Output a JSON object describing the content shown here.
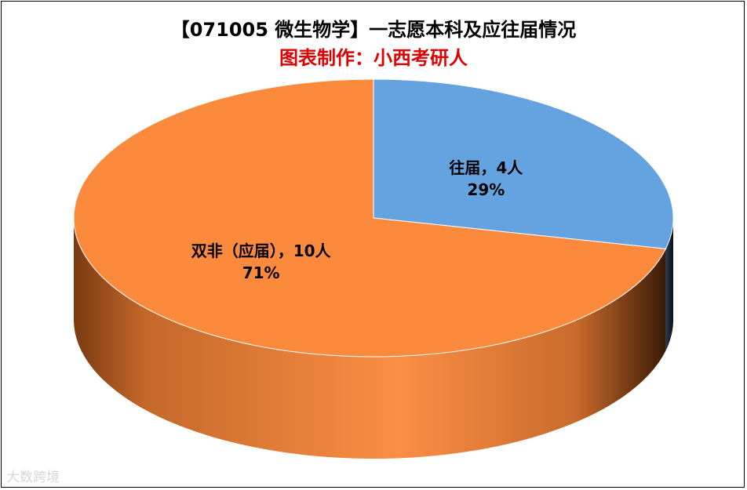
{
  "chart_data": {
    "type": "pie",
    "style": "3d",
    "title": "【071005 微生物学】一志愿本科及应往届情况",
    "subtitle": "图表制作：小西考研人",
    "slices": [
      {
        "label": "往届",
        "value": 4,
        "unit": "人",
        "percent": "29%",
        "color": "#65a3e0"
      },
      {
        "label": "双非（应届）",
        "value": 10,
        "unit": "人",
        "percent": "71%",
        "color": "#fb8a3d"
      }
    ]
  },
  "watermark": "大数跨境",
  "colors": {
    "side_dark": "#6b3210",
    "side_light": "#fb8e45"
  }
}
